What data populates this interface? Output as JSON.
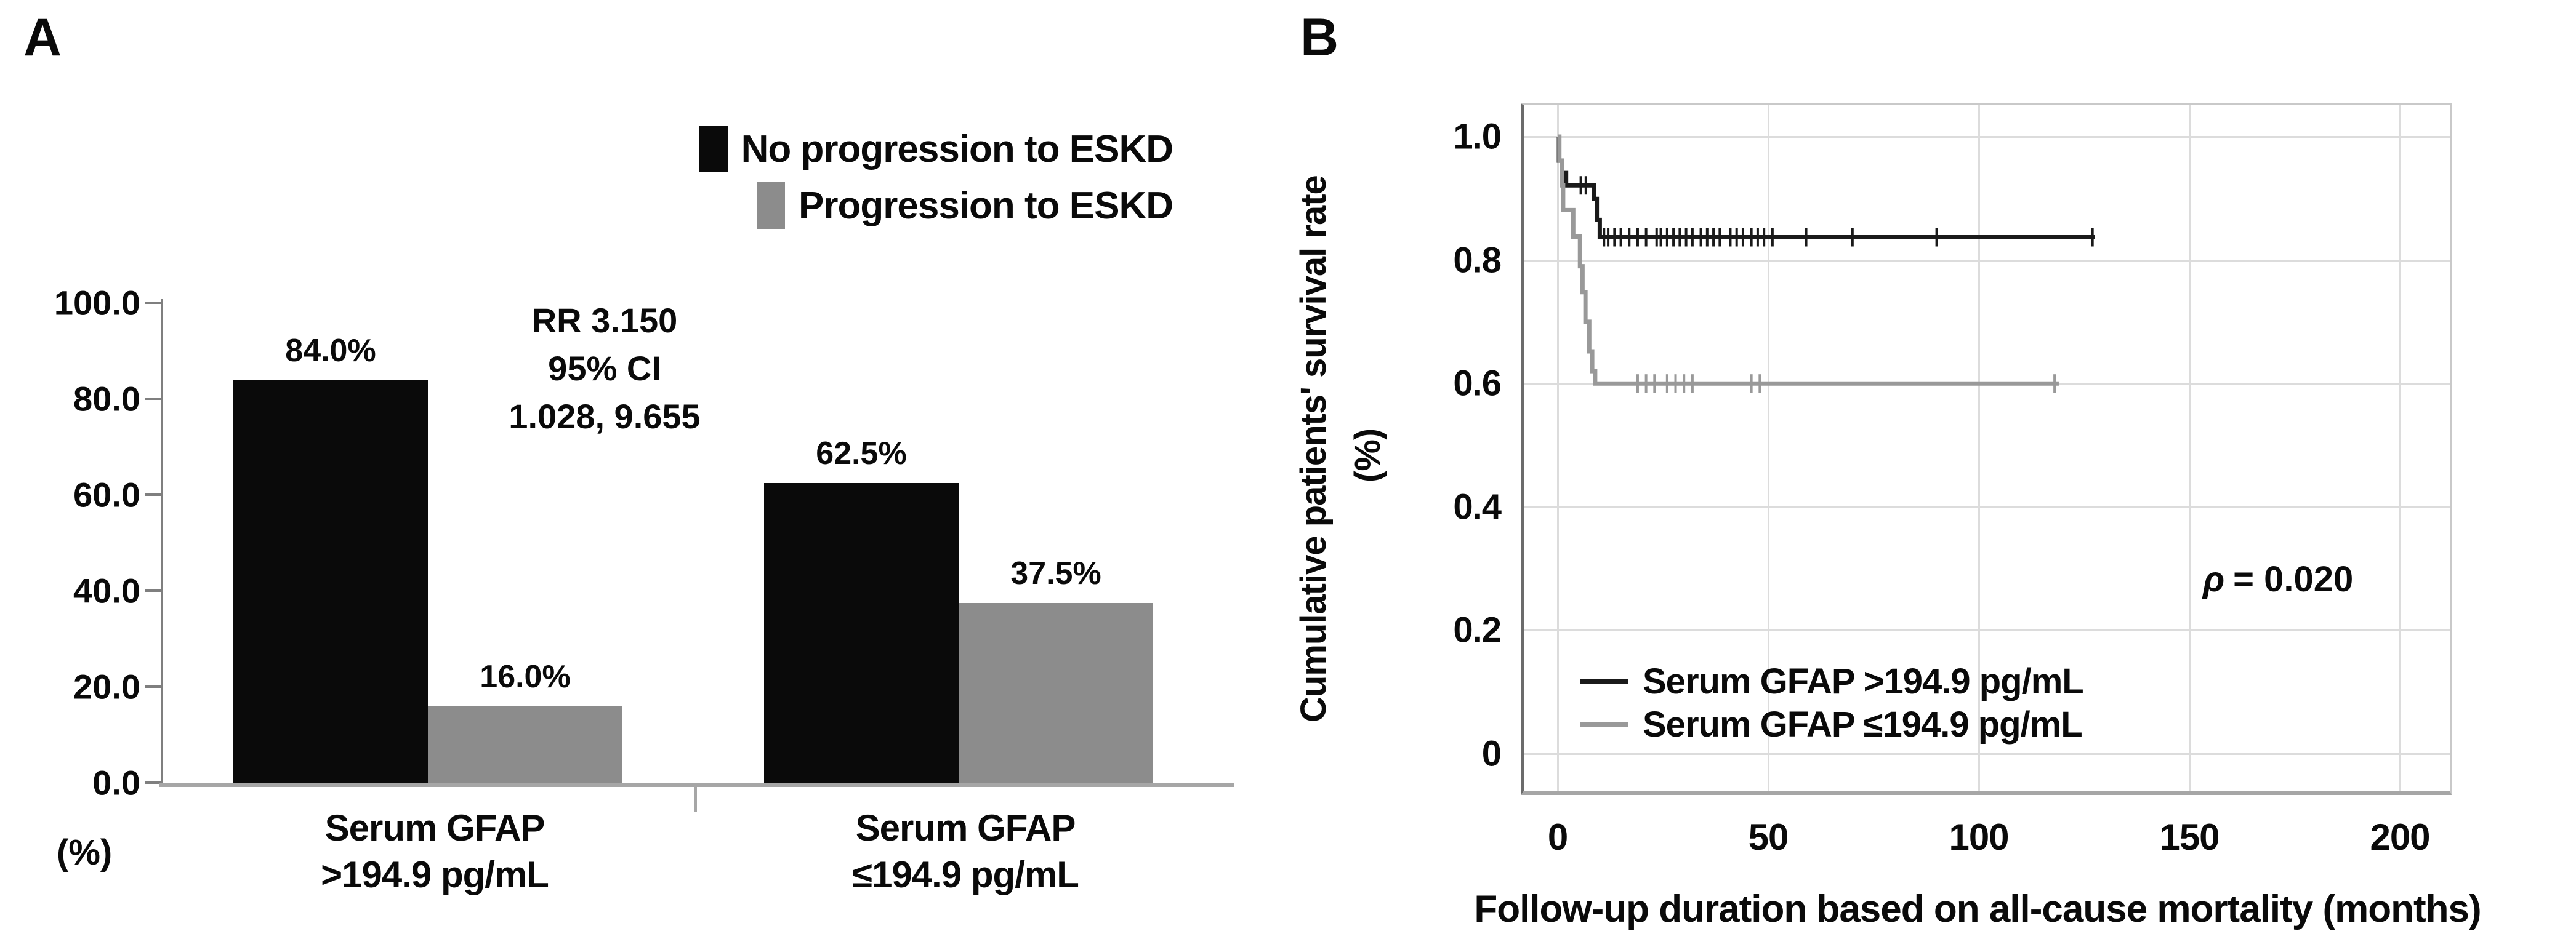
{
  "figure": {
    "panel_a_label": "A",
    "panel_b_label": "B"
  },
  "panelA": {
    "legend": [
      {
        "label": "No progression to ESKD",
        "color": "#0a0a0a"
      },
      {
        "label": "Progression to ESKD",
        "color": "#8c8c8c"
      }
    ],
    "annotation_lines": [
      "RR 3.150",
      "95% CI",
      "1.028, 9.655"
    ],
    "y_ticks": [
      "100.0",
      "80.0",
      "60.0",
      "40.0",
      "20.0",
      "0.0"
    ],
    "y_unit": "(%)",
    "groups": [
      {
        "line1": "Serum GFAP",
        "line2": ">194.9 pg/mL"
      },
      {
        "line1": "Serum GFAP",
        "line2": "≤194.9 pg/mL"
      }
    ]
  },
  "panelB": {
    "y_label": "Cumulative patients' survival rate",
    "y_label_unit": "(%)",
    "x_label": "Follow-up duration based on all-cause mortality (months)",
    "y_ticks": [
      "1.0",
      "0.8",
      "0.6",
      "0.4",
      "0.2",
      "0"
    ],
    "x_ticks": [
      "0",
      "50",
      "100",
      "150",
      "200"
    ],
    "p_symbol": "ρ",
    "p_rest": "= 0.020",
    "p_value_text": "ρ = 0.020",
    "legend": [
      {
        "label": "Serum GFAP >194.9 pg/mL",
        "color": "#1a1a1a"
      },
      {
        "label": "Serum GFAP ≤194.9 pg/mL",
        "color": "#999999"
      }
    ]
  },
  "chart_data": [
    {
      "type": "bar",
      "panel": "A",
      "categories": [
        "Serum GFAP >194.9 pg/mL",
        "Serum GFAP ≤194.9 pg/mL"
      ],
      "series": [
        {
          "name": "No progression to ESKD",
          "color": "#0a0a0a",
          "values": [
            84.0,
            62.5
          ],
          "labels": [
            "84.0%",
            "62.5%"
          ]
        },
        {
          "name": "Progression to ESKD",
          "color": "#8c8c8c",
          "values": [
            16.0,
            37.5
          ],
          "labels": [
            "16.0%",
            "37.5%"
          ]
        }
      ],
      "ylabel": "(%)",
      "ylim": [
        0,
        100
      ],
      "yticks": [
        100.0,
        80.0,
        60.0,
        40.0,
        20.0,
        0.0
      ],
      "grid": false,
      "legend_position": "top-right",
      "annotation": "RR 3.150 95% CI 1.028, 9.655"
    },
    {
      "type": "line",
      "subtype": "kaplan-meier-step",
      "panel": "B",
      "title": "",
      "xlabel": "Follow-up duration based on all-cause mortality (months)",
      "ylabel": "Cumulative patients' survival rate (%)",
      "xlim": [
        -9,
        212
      ],
      "ylim": [
        -0.07,
        1.05
      ],
      "xticks": [
        0,
        50,
        100,
        150,
        200
      ],
      "yticks": [
        1.0,
        0.8,
        0.6,
        0.4,
        0.2,
        0
      ],
      "grid": true,
      "legend_position": "lower-left-inside",
      "annotation": "p = 0.020",
      "series": [
        {
          "name": "Serum GFAP >194.9 pg/mL",
          "color": "#1a1a1a",
          "end_time": 127.5,
          "steps": [
            [
              0,
              1.0
            ],
            [
              0.3,
              0.961
            ],
            [
              1,
              0.941
            ],
            [
              2,
              0.921
            ],
            [
              8.6,
              0.899
            ],
            [
              9.3,
              0.865
            ],
            [
              10,
              0.837
            ]
          ],
          "censor_marks": [
            [
              5.5,
              0.921
            ],
            [
              6.7,
              0.921
            ],
            [
              11,
              0.837
            ],
            [
              12,
              0.837
            ],
            [
              13.5,
              0.837
            ],
            [
              15,
              0.837
            ],
            [
              17,
              0.837
            ],
            [
              19,
              0.837
            ],
            [
              21,
              0.837
            ],
            [
              23.5,
              0.837
            ],
            [
              24.5,
              0.837
            ],
            [
              26,
              0.837
            ],
            [
              27.5,
              0.837
            ],
            [
              29,
              0.837
            ],
            [
              30.5,
              0.837
            ],
            [
              32,
              0.837
            ],
            [
              34,
              0.837
            ],
            [
              35.5,
              0.837
            ],
            [
              37,
              0.837
            ],
            [
              38.5,
              0.837
            ],
            [
              41,
              0.837
            ],
            [
              42.5,
              0.837
            ],
            [
              44,
              0.837
            ],
            [
              46,
              0.837
            ],
            [
              47.5,
              0.837
            ],
            [
              49,
              0.837
            ],
            [
              51,
              0.837
            ],
            [
              59,
              0.837
            ],
            [
              70,
              0.837
            ],
            [
              90,
              0.837
            ],
            [
              127,
              0.837
            ]
          ]
        },
        {
          "name": "Serum GFAP ≤194.9 pg/mL",
          "color": "#999999",
          "end_time": 119,
          "steps": [
            [
              0,
              1.0
            ],
            [
              0.4,
              0.961
            ],
            [
              1,
              0.921
            ],
            [
              1.3,
              0.881
            ],
            [
              3.7,
              0.838
            ],
            [
              5.3,
              0.79
            ],
            [
              5.9,
              0.748
            ],
            [
              6.6,
              0.7
            ],
            [
              7.5,
              0.652
            ],
            [
              8.2,
              0.62
            ],
            [
              8.9,
              0.6
            ]
          ],
          "censor_marks": [
            [
              19,
              0.6
            ],
            [
              21,
              0.6
            ],
            [
              23,
              0.6
            ],
            [
              26,
              0.6
            ],
            [
              28,
              0.6
            ],
            [
              30,
              0.6
            ],
            [
              32,
              0.6
            ],
            [
              46,
              0.6
            ],
            [
              48,
              0.6
            ],
            [
              118,
              0.6
            ]
          ]
        }
      ]
    }
  ]
}
